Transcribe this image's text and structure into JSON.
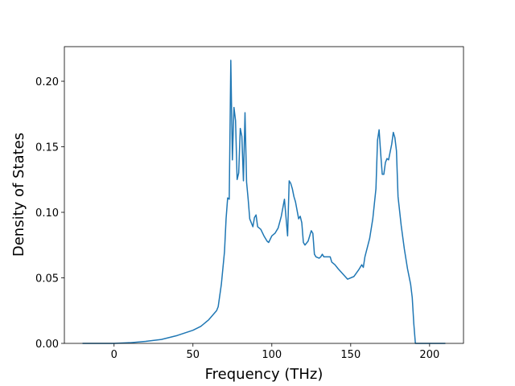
{
  "chart_data": {
    "type": "line",
    "x_label": "Frequency (THz)",
    "y_label": "Density of States",
    "xlim": [
      -31.5,
      221.5
    ],
    "ylim": [
      0,
      0.2264
    ],
    "xticks": [
      0,
      50,
      100,
      150,
      200
    ],
    "yticks": [
      {
        "value": 0,
        "label": "0.00"
      },
      {
        "value": 0.05,
        "label": "0.05"
      },
      {
        "value": 0.1,
        "label": "0.10"
      },
      {
        "value": 0.15,
        "label": "0.15"
      },
      {
        "value": 0.2,
        "label": "0.20"
      }
    ],
    "series": [
      {
        "color": "#1f77b4",
        "x": [
          -20,
          0,
          10,
          20,
          30,
          40,
          50,
          55,
          60,
          65,
          66,
          68,
          70,
          71,
          72,
          73,
          74,
          75,
          76,
          77,
          78,
          79,
          80,
          81,
          82,
          83,
          84,
          85,
          86,
          88,
          89,
          90,
          91,
          93,
          95,
          97,
          98,
          100,
          102,
          104,
          106,
          108,
          109,
          110,
          111,
          112,
          113,
          114,
          115,
          117,
          118,
          119,
          120,
          121,
          123,
          125,
          126,
          127,
          128,
          130,
          131,
          132,
          133,
          135,
          137,
          138,
          140,
          142,
          145,
          148,
          152,
          155,
          157,
          158,
          159,
          162,
          164,
          166,
          167,
          168,
          169,
          170,
          171,
          172,
          173,
          174,
          176,
          177,
          178,
          179,
          180,
          182,
          184,
          186,
          188,
          189,
          190,
          191,
          195,
          210
        ],
        "values": [
          0,
          0,
          0.0005,
          0.0015,
          0.003,
          0.006,
          0.01,
          0.013,
          0.018,
          0.025,
          0.028,
          0.045,
          0.07,
          0.095,
          0.111,
          0.11,
          0.216,
          0.14,
          0.18,
          0.17,
          0.125,
          0.13,
          0.164,
          0.158,
          0.124,
          0.176,
          0.123,
          0.11,
          0.095,
          0.089,
          0.096,
          0.098,
          0.089,
          0.087,
          0.082,
          0.078,
          0.077,
          0.082,
          0.084,
          0.088,
          0.097,
          0.11,
          0.096,
          0.082,
          0.124,
          0.122,
          0.118,
          0.112,
          0.108,
          0.095,
          0.097,
          0.092,
          0.077,
          0.075,
          0.078,
          0.086,
          0.084,
          0.068,
          0.066,
          0.065,
          0.066,
          0.068,
          0.066,
          0.066,
          0.066,
          0.062,
          0.06,
          0.057,
          0.053,
          0.049,
          0.051,
          0.056,
          0.06,
          0.058,
          0.066,
          0.08,
          0.095,
          0.118,
          0.155,
          0.163,
          0.145,
          0.129,
          0.129,
          0.138,
          0.141,
          0.14,
          0.152,
          0.161,
          0.157,
          0.147,
          0.112,
          0.09,
          0.072,
          0.057,
          0.045,
          0.035,
          0.015,
          0,
          0,
          0
        ]
      }
    ]
  }
}
